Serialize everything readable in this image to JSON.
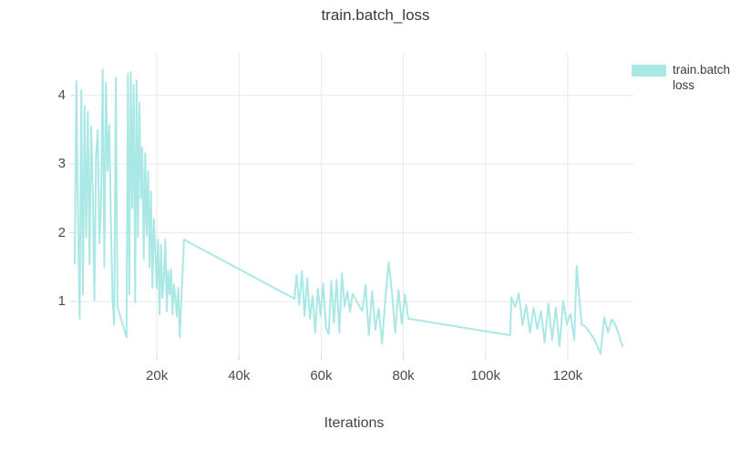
{
  "chart_data": {
    "type": "line",
    "title": "train.batch_loss",
    "xlabel": "Iterations",
    "ylabel": "",
    "legend": {
      "line1": "train.batch",
      "line2": "loss",
      "series_name": "train.batch loss"
    },
    "legend_position": "right",
    "grid": true,
    "colors": {
      "line": "#a9e8e5",
      "grid": "#e9e9e9",
      "tick_mark": "#d6d6d6",
      "tick_text": "#4a4a4a",
      "title_text": "#353b44",
      "axis_title_text": "#444444",
      "background": "#ffffff"
    },
    "x_range": [
      0,
      136000
    ],
    "y_range": [
      0.218,
      4.62
    ],
    "x_ticks": [
      {
        "value": 20000,
        "label": "20k"
      },
      {
        "value": 40000,
        "label": "40k"
      },
      {
        "value": 60000,
        "label": "60k"
      },
      {
        "value": 80000,
        "label": "80k"
      },
      {
        "value": 100000,
        "label": "100k"
      },
      {
        "value": 120000,
        "label": "120k"
      }
    ],
    "y_ticks": [
      {
        "value": 1,
        "label": "1"
      },
      {
        "value": 2,
        "label": "2"
      },
      {
        "value": 3,
        "label": "3"
      },
      {
        "value": 4,
        "label": "4"
      }
    ],
    "series": [
      {
        "name": "train.batch loss",
        "points": [
          [
            0,
            1.55
          ],
          [
            400,
            4.21
          ],
          [
            800,
            2.2
          ],
          [
            1200,
            0.75
          ],
          [
            1600,
            4.08
          ],
          [
            2000,
            1.1
          ],
          [
            2400,
            3.84
          ],
          [
            2800,
            1.94
          ],
          [
            3200,
            3.76
          ],
          [
            3600,
            1.54
          ],
          [
            4000,
            3.55
          ],
          [
            4400,
            2.6
          ],
          [
            4800,
            1.02
          ],
          [
            5200,
            3.13
          ],
          [
            5600,
            3.5
          ],
          [
            6000,
            1.85
          ],
          [
            6400,
            2.4
          ],
          [
            6800,
            4.38
          ],
          [
            7200,
            1.5
          ],
          [
            7600,
            4.19
          ],
          [
            8000,
            2.9
          ],
          [
            8400,
            3.57
          ],
          [
            8800,
            2.14
          ],
          [
            9200,
            1.01
          ],
          [
            9600,
            0.66
          ],
          [
            10000,
            4.26
          ],
          [
            10400,
            0.92
          ],
          [
            12600,
            0.48
          ],
          [
            12950,
            4.32
          ],
          [
            13300,
            1.1
          ],
          [
            13650,
            4.34
          ],
          [
            14000,
            2.36
          ],
          [
            14350,
            4.15
          ],
          [
            14700,
            0.99
          ],
          [
            15050,
            4.22
          ],
          [
            15400,
            1.94
          ],
          [
            15750,
            3.9
          ],
          [
            16100,
            2.5
          ],
          [
            16450,
            3.24
          ],
          [
            16800,
            1.62
          ],
          [
            17150,
            3.16
          ],
          [
            17500,
            1.96
          ],
          [
            17850,
            2.9
          ],
          [
            18200,
            1.5
          ],
          [
            18550,
            2.6
          ],
          [
            18900,
            1.2
          ],
          [
            19250,
            2.2
          ],
          [
            19600,
            1.77
          ],
          [
            19950,
            1.19
          ],
          [
            20300,
            1.9
          ],
          [
            20650,
            0.81
          ],
          [
            21000,
            1.83
          ],
          [
            21350,
            1.05
          ],
          [
            21700,
            1.34
          ],
          [
            22050,
            1.9
          ],
          [
            22400,
            0.86
          ],
          [
            22750,
            1.45
          ],
          [
            23100,
            1.1
          ],
          [
            23450,
            1.47
          ],
          [
            23800,
            0.81
          ],
          [
            24150,
            1.25
          ],
          [
            24500,
            1.06
          ],
          [
            24850,
            0.78
          ],
          [
            25200,
            1.2
          ],
          [
            25550,
            0.48
          ],
          [
            26600,
            1.9
          ],
          [
            53500,
            1.04
          ],
          [
            54000,
            1.39
          ],
          [
            54650,
            0.95
          ],
          [
            55300,
            1.44
          ],
          [
            55950,
            0.79
          ],
          [
            56600,
            1.34
          ],
          [
            57250,
            0.75
          ],
          [
            57900,
            1.08
          ],
          [
            58550,
            0.55
          ],
          [
            59200,
            1.19
          ],
          [
            59850,
            0.79
          ],
          [
            60500,
            1.26
          ],
          [
            61150,
            0.62
          ],
          [
            61800,
            0.53
          ],
          [
            62450,
            1.3
          ],
          [
            63100,
            0.69
          ],
          [
            63750,
            1.32
          ],
          [
            64400,
            0.55
          ],
          [
            65050,
            1.41
          ],
          [
            65700,
            0.93
          ],
          [
            66350,
            1.15
          ],
          [
            67000,
            0.85
          ],
          [
            67650,
            1.11
          ],
          [
            70000,
            0.86
          ],
          [
            70800,
            1.24
          ],
          [
            71600,
            0.51
          ],
          [
            72400,
            1.15
          ],
          [
            73200,
            0.59
          ],
          [
            74000,
            0.9
          ],
          [
            74800,
            0.39
          ],
          [
            75600,
            1.04
          ],
          [
            76400,
            1.57
          ],
          [
            77200,
            1.15
          ],
          [
            78000,
            0.55
          ],
          [
            78800,
            1.17
          ],
          [
            79600,
            0.68
          ],
          [
            80400,
            1.1
          ],
          [
            81200,
            0.75
          ],
          [
            106000,
            0.51
          ],
          [
            106300,
            1.06
          ],
          [
            107200,
            0.92
          ],
          [
            108100,
            1.12
          ],
          [
            109000,
            0.66
          ],
          [
            109900,
            0.95
          ],
          [
            110800,
            0.55
          ],
          [
            111700,
            0.91
          ],
          [
            112600,
            0.6
          ],
          [
            113500,
            0.86
          ],
          [
            114400,
            0.4
          ],
          [
            115300,
            0.97
          ],
          [
            116200,
            0.44
          ],
          [
            117100,
            0.91
          ],
          [
            118000,
            0.35
          ],
          [
            118900,
            1.01
          ],
          [
            119800,
            0.67
          ],
          [
            120700,
            0.82
          ],
          [
            121600,
            0.44
          ],
          [
            122200,
            1.52
          ],
          [
            122800,
            1.06
          ],
          [
            123400,
            0.66
          ],
          [
            124300,
            0.64
          ],
          [
            126500,
            0.45
          ],
          [
            128000,
            0.24
          ],
          [
            128900,
            0.77
          ],
          [
            129800,
            0.55
          ],
          [
            130700,
            0.74
          ],
          [
            131600,
            0.66
          ],
          [
            132500,
            0.51
          ],
          [
            133000,
            0.4
          ],
          [
            133400,
            0.35
          ]
        ]
      }
    ]
  }
}
